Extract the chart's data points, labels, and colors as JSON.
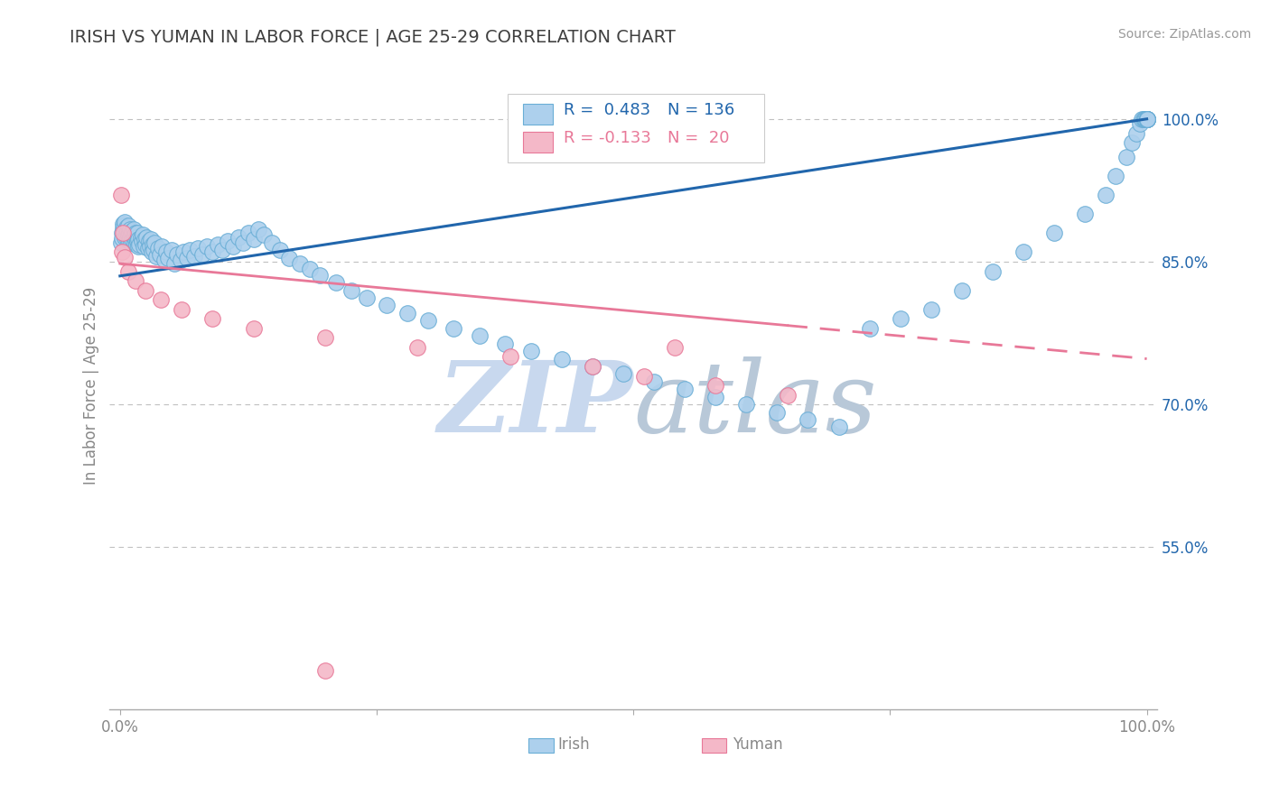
{
  "title": "IRISH VS YUMAN IN LABOR FORCE | AGE 25-29 CORRELATION CHART",
  "source_text": "Source: ZipAtlas.com",
  "ylabel": "In Labor Force | Age 25-29",
  "xlim": [
    -0.01,
    1.01
  ],
  "ylim": [
    0.38,
    1.06
  ],
  "ytick_positions": [
    0.55,
    0.7,
    0.85,
    1.0
  ],
  "ytick_labels": [
    "55.0%",
    "70.0%",
    "85.0%",
    "100.0%"
  ],
  "xtick_positions": [
    0.0,
    0.25,
    0.5,
    0.75,
    1.0
  ],
  "xtick_labels": [
    "0.0%",
    "",
    "",
    "",
    "100.0%"
  ],
  "irish_R": 0.483,
  "irish_N": 136,
  "yuman_R": -0.133,
  "yuman_N": 20,
  "irish_color": "#add0ed",
  "irish_edge_color": "#6aaed6",
  "yuman_color": "#f4b8c8",
  "yuman_edge_color": "#e87898",
  "irish_line_color": "#2166ac",
  "yuman_line_color": "#e87898",
  "background_color": "#ffffff",
  "grid_color": "#c0c0c0",
  "title_color": "#404040",
  "watermark_color": "#c8d8ee",
  "axis_color": "#888888",
  "tick_label_color_blue": "#2166ac",
  "tick_label_color_gray": "#888888",
  "irish_x": [
    0.001,
    0.002,
    0.002,
    0.003,
    0.003,
    0.004,
    0.004,
    0.005,
    0.005,
    0.006,
    0.006,
    0.007,
    0.007,
    0.008,
    0.008,
    0.009,
    0.009,
    0.01,
    0.01,
    0.011,
    0.011,
    0.012,
    0.012,
    0.013,
    0.013,
    0.014,
    0.014,
    0.015,
    0.015,
    0.016,
    0.016,
    0.017,
    0.017,
    0.018,
    0.018,
    0.019,
    0.02,
    0.021,
    0.022,
    0.023,
    0.024,
    0.025,
    0.026,
    0.027,
    0.028,
    0.029,
    0.03,
    0.031,
    0.032,
    0.033,
    0.034,
    0.035,
    0.037,
    0.039,
    0.041,
    0.043,
    0.045,
    0.047,
    0.05,
    0.053,
    0.056,
    0.059,
    0.062,
    0.065,
    0.068,
    0.072,
    0.076,
    0.08,
    0.085,
    0.09,
    0.095,
    0.1,
    0.105,
    0.11,
    0.115,
    0.12,
    0.125,
    0.13,
    0.135,
    0.14,
    0.148,
    0.156,
    0.165,
    0.175,
    0.185,
    0.195,
    0.21,
    0.225,
    0.24,
    0.26,
    0.28,
    0.3,
    0.325,
    0.35,
    0.375,
    0.4,
    0.43,
    0.46,
    0.49,
    0.52,
    0.55,
    0.58,
    0.61,
    0.64,
    0.67,
    0.7,
    0.73,
    0.76,
    0.79,
    0.82,
    0.85,
    0.88,
    0.91,
    0.94,
    0.96,
    0.97,
    0.98,
    0.985,
    0.99,
    0.993,
    0.995,
    0.997,
    0.998,
    0.999,
    1.0,
    1.0,
    1.0,
    1.0,
    1.0,
    1.0,
    1.0,
    1.0,
    1.0,
    1.0,
    1.0,
    1.0
  ],
  "irish_y": [
    0.87,
    0.88,
    0.875,
    0.885,
    0.89,
    0.882,
    0.888,
    0.876,
    0.892,
    0.878,
    0.886,
    0.874,
    0.882,
    0.878,
    0.888,
    0.872,
    0.88,
    0.876,
    0.884,
    0.87,
    0.878,
    0.874,
    0.882,
    0.876,
    0.884,
    0.87,
    0.878,
    0.874,
    0.88,
    0.868,
    0.876,
    0.872,
    0.88,
    0.866,
    0.874,
    0.868,
    0.876,
    0.872,
    0.878,
    0.866,
    0.874,
    0.868,
    0.876,
    0.864,
    0.872,
    0.866,
    0.874,
    0.86,
    0.868,
    0.862,
    0.87,
    0.856,
    0.864,
    0.858,
    0.866,
    0.852,
    0.86,
    0.854,
    0.862,
    0.848,
    0.858,
    0.852,
    0.86,
    0.854,
    0.862,
    0.856,
    0.864,
    0.858,
    0.866,
    0.86,
    0.868,
    0.862,
    0.872,
    0.866,
    0.876,
    0.87,
    0.88,
    0.874,
    0.884,
    0.878,
    0.87,
    0.862,
    0.854,
    0.848,
    0.842,
    0.836,
    0.828,
    0.82,
    0.812,
    0.804,
    0.796,
    0.788,
    0.78,
    0.772,
    0.764,
    0.756,
    0.748,
    0.74,
    0.732,
    0.724,
    0.716,
    0.708,
    0.7,
    0.692,
    0.684,
    0.676,
    0.78,
    0.79,
    0.8,
    0.82,
    0.84,
    0.86,
    0.88,
    0.9,
    0.92,
    0.94,
    0.96,
    0.975,
    0.985,
    0.995,
    1.0,
    1.0,
    1.0,
    1.0,
    1.0,
    1.0,
    1.0,
    1.0,
    1.0,
    1.0,
    1.0,
    1.0,
    1.0,
    1.0,
    1.0,
    1.0
  ],
  "yuman_x": [
    0.001,
    0.002,
    0.003,
    0.005,
    0.008,
    0.015,
    0.025,
    0.04,
    0.06,
    0.09,
    0.13,
    0.2,
    0.29,
    0.38,
    0.46,
    0.51,
    0.54,
    0.58,
    0.65,
    0.2
  ],
  "yuman_y": [
    0.92,
    0.86,
    0.88,
    0.855,
    0.84,
    0.83,
    0.82,
    0.81,
    0.8,
    0.79,
    0.78,
    0.77,
    0.76,
    0.75,
    0.74,
    0.73,
    0.76,
    0.72,
    0.71,
    0.42
  ]
}
